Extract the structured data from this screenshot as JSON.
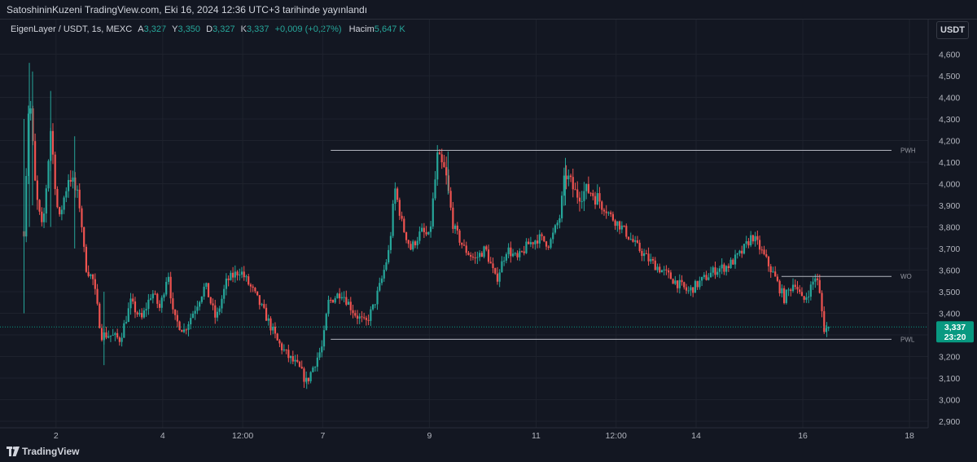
{
  "header": {
    "published_text": "SatoshininKuzeni TradingView.com, Eki 16, 2024 12:36 UTC+3 tarihinde yayınlandı"
  },
  "legend": {
    "symbol": "EigenLayer / USDT, 1s, MEXC",
    "open_label": "A",
    "open_value": "3,327",
    "high_label": "Y",
    "high_value": "3,350",
    "low_label": "D",
    "low_value": "3,327",
    "close_label": "K",
    "close_value": "3,337",
    "change": "+0,009 (+0,27%)",
    "volume_label": "Hacim",
    "volume_value": "5,647 K"
  },
  "currency_button": "USDT",
  "footer": {
    "brand": "TradingView"
  },
  "colors": {
    "background": "#131722",
    "up": "#26a69a",
    "down": "#ef5350",
    "grid": "#1e222d",
    "level_line": "#b2b5be",
    "price_tag": "#089981"
  },
  "chart_data": {
    "type": "candlestick",
    "ylim": [
      2.87,
      4.67
    ],
    "y_ticks": [
      2.9,
      3.0,
      3.1,
      3.2,
      3.3,
      3.4,
      3.5,
      3.6,
      3.7,
      3.8,
      3.9,
      4.0,
      4.1,
      4.2,
      4.3,
      4.4,
      4.5,
      4.6
    ],
    "y_tick_labels": [
      "2,900",
      "3,000",
      "3,100",
      "3,200",
      "3,300",
      "3,400",
      "3,500",
      "3,600",
      "3,700",
      "3,800",
      "3,900",
      "4,000",
      "4,100",
      "4,200",
      "4,300",
      "4,400",
      "4,500",
      "4,600"
    ],
    "x_ticks": [
      {
        "label": "2",
        "day": 2
      },
      {
        "label": "4",
        "day": 4
      },
      {
        "label": "12:00",
        "day": 5.5
      },
      {
        "label": "7",
        "day": 7
      },
      {
        "label": "9",
        "day": 9
      },
      {
        "label": "11",
        "day": 11
      },
      {
        "label": "12:00",
        "day": 12.5
      },
      {
        "label": "14",
        "day": 14
      },
      {
        "label": "16",
        "day": 16
      },
      {
        "label": "18",
        "day": 18
      }
    ],
    "xlim": [
      0.95,
      18.35
    ],
    "price_path": [
      [
        1.4,
        3.78
      ],
      [
        1.5,
        4.45
      ],
      [
        1.62,
        3.95
      ],
      [
        1.75,
        3.78
      ],
      [
        1.9,
        4.25
      ],
      [
        2.05,
        3.82
      ],
      [
        2.25,
        4.05
      ],
      [
        2.45,
        3.9
      ],
      [
        2.55,
        3.62
      ],
      [
        2.7,
        3.55
      ],
      [
        2.85,
        3.3
      ],
      [
        3.0,
        3.3
      ],
      [
        3.2,
        3.28
      ],
      [
        3.4,
        3.45
      ],
      [
        3.6,
        3.37
      ],
      [
        3.8,
        3.5
      ],
      [
        3.95,
        3.42
      ],
      [
        4.1,
        3.6
      ],
      [
        4.2,
        3.38
      ],
      [
        4.4,
        3.32
      ],
      [
        4.6,
        3.42
      ],
      [
        4.8,
        3.53
      ],
      [
        5.0,
        3.37
      ],
      [
        5.2,
        3.55
      ],
      [
        5.45,
        3.6
      ],
      [
        5.7,
        3.5
      ],
      [
        5.95,
        3.38
      ],
      [
        6.15,
        3.27
      ],
      [
        6.35,
        3.2
      ],
      [
        6.55,
        3.15
      ],
      [
        6.7,
        3.08
      ],
      [
        6.85,
        3.17
      ],
      [
        7.0,
        3.25
      ],
      [
        7.1,
        3.45
      ],
      [
        7.35,
        3.5
      ],
      [
        7.6,
        3.4
      ],
      [
        7.8,
        3.35
      ],
      [
        7.95,
        3.43
      ],
      [
        8.1,
        3.55
      ],
      [
        8.25,
        3.7
      ],
      [
        8.35,
        3.98
      ],
      [
        8.5,
        3.8
      ],
      [
        8.65,
        3.7
      ],
      [
        8.85,
        3.78
      ],
      [
        9.0,
        3.75
      ],
      [
        9.15,
        4.12
      ],
      [
        9.3,
        4.05
      ],
      [
        9.45,
        3.8
      ],
      [
        9.65,
        3.7
      ],
      [
        9.85,
        3.65
      ],
      [
        10.05,
        3.7
      ],
      [
        10.25,
        3.55
      ],
      [
        10.45,
        3.7
      ],
      [
        10.65,
        3.65
      ],
      [
        10.85,
        3.72
      ],
      [
        11.05,
        3.75
      ],
      [
        11.25,
        3.72
      ],
      [
        11.45,
        3.85
      ],
      [
        11.55,
        4.05
      ],
      [
        11.75,
        3.95
      ],
      [
        12.0,
        3.97
      ],
      [
        12.2,
        3.92
      ],
      [
        12.4,
        3.85
      ],
      [
        12.6,
        3.8
      ],
      [
        12.85,
        3.72
      ],
      [
        13.1,
        3.65
      ],
      [
        13.35,
        3.6
      ],
      [
        13.6,
        3.55
      ],
      [
        13.85,
        3.5
      ],
      [
        14.1,
        3.55
      ],
      [
        14.35,
        3.6
      ],
      [
        14.6,
        3.62
      ],
      [
        14.85,
        3.68
      ],
      [
        15.05,
        3.76
      ],
      [
        15.2,
        3.7
      ],
      [
        15.45,
        3.58
      ],
      [
        15.65,
        3.47
      ],
      [
        15.85,
        3.55
      ],
      [
        16.0,
        3.45
      ],
      [
        16.15,
        3.52
      ],
      [
        16.25,
        3.58
      ],
      [
        16.32,
        3.48
      ],
      [
        16.4,
        3.33
      ],
      [
        16.5,
        3.33
      ]
    ],
    "spike_candles": [
      {
        "day": 1.4,
        "high": 4.3,
        "low": 3.4
      },
      {
        "day": 1.5,
        "high": 4.56,
        "low": 3.8
      },
      {
        "day": 1.56,
        "high": 4.52,
        "low": 3.9
      },
      {
        "day": 1.9,
        "high": 4.43,
        "low": 3.8
      },
      {
        "day": 2.35,
        "high": 4.22,
        "low": 3.7
      },
      {
        "day": 2.9,
        "high": 3.5,
        "low": 3.16
      },
      {
        "day": 6.7,
        "high": 3.1,
        "low": 3.05
      },
      {
        "day": 9.35,
        "high": 4.15,
        "low": 3.95
      },
      {
        "day": 11.55,
        "high": 4.12,
        "low": 3.9
      },
      {
        "day": 16.45,
        "high": 3.36,
        "low": 3.29
      }
    ],
    "levels": [
      {
        "label": "PWH",
        "value": 4.155,
        "from_day": 7.15
      },
      {
        "label": "WO",
        "value": 3.571,
        "from_day": 15.6
      },
      {
        "label": "PWL",
        "value": 3.28,
        "from_day": 7.15
      }
    ],
    "last_price": {
      "value": 3.337,
      "label": "3,337",
      "countdown": "23:20"
    }
  }
}
